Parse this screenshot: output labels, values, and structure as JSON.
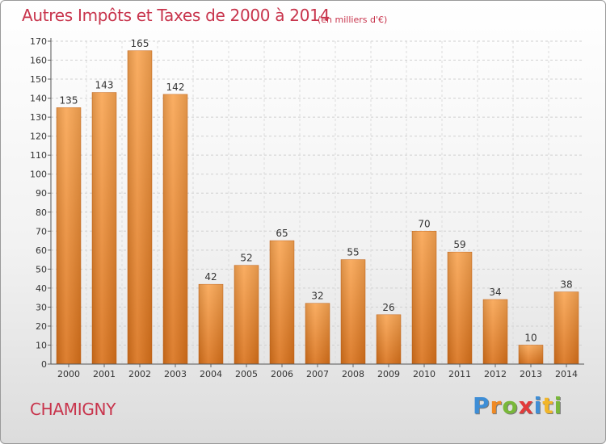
{
  "header": {
    "title": "Autres Impôts et Taxes de 2000 à 2014",
    "unit": "(en milliers d'€)"
  },
  "footer": {
    "commune": "CHAMIGNY",
    "brand_letters": [
      "P",
      "r",
      "o",
      "x",
      "i",
      "t",
      "i"
    ],
    "brand_colors": [
      "#3e8ed6",
      "#f08a24",
      "#79b83a",
      "#e23b3b",
      "#3e8ed6",
      "#f2b62a",
      "#79b83a"
    ]
  },
  "chart_data": {
    "type": "bar",
    "categories": [
      "2000",
      "2001",
      "2002",
      "2003",
      "2004",
      "2005",
      "2006",
      "2007",
      "2008",
      "2009",
      "2010",
      "2011",
      "2012",
      "2013",
      "2014"
    ],
    "values": [
      135,
      143,
      165,
      142,
      42,
      52,
      65,
      32,
      55,
      26,
      70,
      59,
      34,
      10,
      38
    ],
    "title": "Autres Impôts et Taxes de 2000 à 2014",
    "xlabel": "",
    "ylabel": "",
    "ylim": [
      0,
      170
    ],
    "yticks": [
      0,
      10,
      20,
      30,
      40,
      50,
      60,
      70,
      80,
      90,
      100,
      110,
      120,
      130,
      140,
      150,
      160,
      170
    ],
    "grid": true,
    "legend": "none",
    "bar_color": "#f0882e"
  }
}
